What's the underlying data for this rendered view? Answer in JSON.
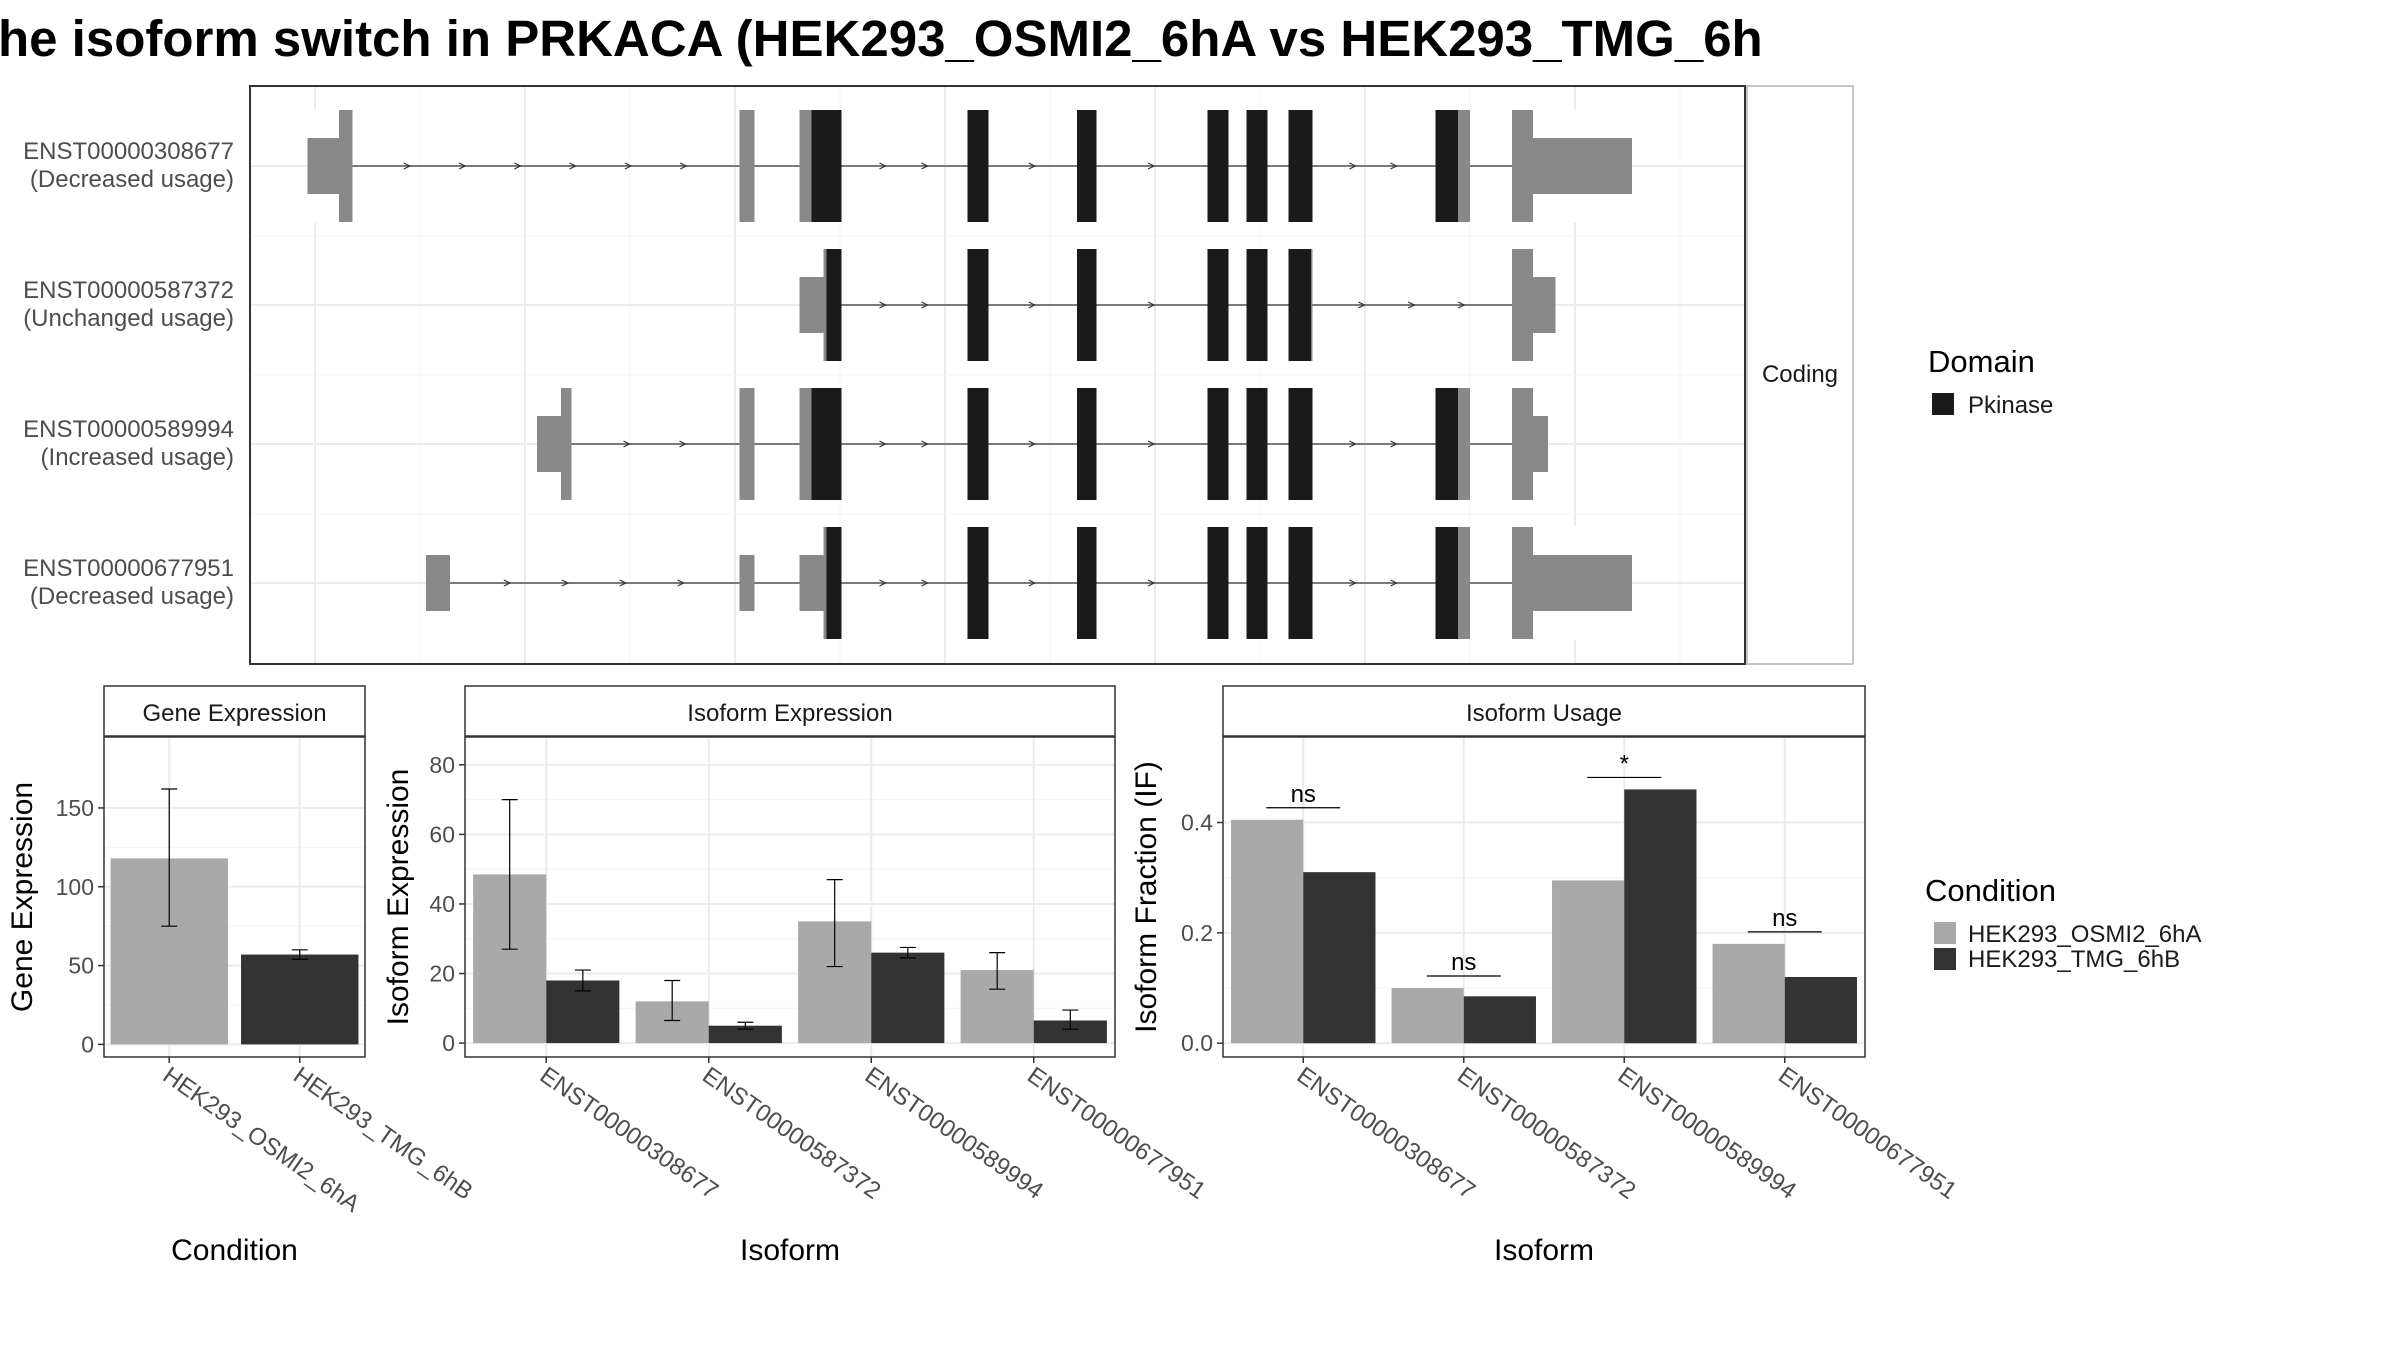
{
  "title": "he isoform switch in PRKACA (HEK293_OSMI2_6hA vs HEK293_TMG_6h",
  "colors": {
    "osmi": "#a9a9a9",
    "tmg": "#333333",
    "exon": "#888888",
    "domain": "#1a1a1a",
    "grid": "#ebebeb",
    "panel_border": "#333333",
    "strip_border": "#b3b3b3"
  },
  "chart_data": [
    {
      "type": "gene-structure",
      "strip_label": "Coding",
      "domain_legend": {
        "title": "Domain",
        "entries": [
          {
            "name": "Pkinase",
            "color": "#1a1a1a"
          }
        ]
      },
      "isoforms": [
        {
          "id": "ENST00000308677",
          "usage": "(Decreased usage)",
          "exons": [
            [
              205,
              235
            ],
            [
              493,
              503
            ],
            [
              533,
              561
            ],
            [
              645,
              659
            ],
            [
              718,
              731
            ],
            [
              805,
              819
            ],
            [
              831,
              845
            ],
            [
              859,
              875
            ],
            [
              957,
              980
            ],
            [
              1008,
              1088
            ]
          ],
          "utr": [
            [
              205,
              226
            ],
            [
              1022,
              1088
            ]
          ],
          "pkinase": [
            [
              541,
              561
            ],
            [
              645,
              659
            ],
            [
              718,
              731
            ],
            [
              805,
              819
            ],
            [
              831,
              845
            ],
            [
              859,
              875
            ],
            [
              957,
              972
            ]
          ]
        },
        {
          "id": "ENST00000587372",
          "usage": "(Unchanged usage)",
          "exons": [
            [
              533,
              561
            ],
            [
              645,
              659
            ],
            [
              718,
              731
            ],
            [
              805,
              819
            ],
            [
              831,
              845
            ],
            [
              859,
              875
            ],
            [
              1008,
              1037
            ]
          ],
          "utr": [
            [
              533,
              549
            ],
            [
              1022,
              1037
            ]
          ],
          "pkinase": [
            [
              551,
              561
            ],
            [
              645,
              659
            ],
            [
              718,
              731
            ],
            [
              805,
              819
            ],
            [
              831,
              845
            ],
            [
              859,
              874
            ]
          ]
        },
        {
          "id": "ENST00000589994",
          "usage": "(Increased usage)",
          "exons": [
            [
              358,
              381
            ],
            [
              493,
              503
            ],
            [
              533,
              561
            ],
            [
              645,
              659
            ],
            [
              718,
              731
            ],
            [
              805,
              819
            ],
            [
              831,
              845
            ],
            [
              859,
              875
            ],
            [
              957,
              980
            ],
            [
              1008,
              1032
            ]
          ],
          "utr": [
            [
              358,
              374
            ],
            [
              1022,
              1032
            ]
          ],
          "pkinase": [
            [
              541,
              561
            ],
            [
              645,
              659
            ],
            [
              718,
              731
            ],
            [
              805,
              819
            ],
            [
              831,
              845
            ],
            [
              859,
              875
            ],
            [
              957,
              972
            ]
          ]
        },
        {
          "id": "ENST00000677951",
          "usage": "(Decreased usage)",
          "exons": [
            [
              284,
              300
            ],
            [
              493,
              503
            ],
            [
              533,
              561
            ],
            [
              645,
              659
            ],
            [
              718,
              731
            ],
            [
              805,
              819
            ],
            [
              831,
              845
            ],
            [
              859,
              875
            ],
            [
              957,
              980
            ],
            [
              1008,
              1088
            ]
          ],
          "utr": [
            [
              284,
              300
            ],
            [
              493,
              503
            ],
            [
              533,
              549
            ],
            [
              1022,
              1088
            ]
          ],
          "pkinase": [
            [
              551,
              561
            ],
            [
              645,
              659
            ],
            [
              718,
              731
            ],
            [
              805,
              819
            ],
            [
              831,
              845
            ],
            [
              859,
              875
            ],
            [
              957,
              972
            ]
          ]
        }
      ]
    },
    {
      "type": "bar",
      "strip_label": "Gene Expression",
      "xlabel": "Condition",
      "ylabel": "Gene Expression",
      "ylim": [
        -8,
        195
      ],
      "yticks": [
        0,
        50,
        100,
        150
      ],
      "categories": [
        "HEK293_OSMI2_6hA",
        "HEK293_TMG_6hB"
      ],
      "series": [
        {
          "values": [
            118,
            57
          ],
          "err_low": [
            75,
            54
          ],
          "err_high": [
            162,
            60
          ]
        }
      ]
    },
    {
      "type": "bar",
      "strip_label": "Isoform Expression",
      "xlabel": "Isoform",
      "ylabel": "Isoform Expression",
      "ylim": [
        -4,
        88
      ],
      "yticks": [
        0,
        20,
        40,
        60,
        80
      ],
      "categories": [
        "ENST00000308677",
        "ENST00000587372",
        "ENST00000589994",
        "ENST00000677951"
      ],
      "series": [
        {
          "name": "HEK293_OSMI2_6hA",
          "values": [
            48.5,
            12,
            35,
            21
          ],
          "err_low": [
            27,
            6.5,
            22,
            15.5
          ],
          "err_high": [
            70,
            18,
            47,
            26
          ]
        },
        {
          "name": "HEK293_TMG_6hB",
          "values": [
            18,
            5,
            26,
            6.5
          ],
          "err_low": [
            15,
            4,
            24.5,
            4
          ],
          "err_high": [
            21,
            6,
            27.5,
            9.5
          ]
        }
      ]
    },
    {
      "type": "bar",
      "strip_label": "Isoform Usage",
      "xlabel": "Isoform",
      "ylabel": "Isoform Fraction (IF)",
      "ylim": [
        -0.025,
        0.555
      ],
      "yticks": [
        0.0,
        0.2,
        0.4
      ],
      "ytick_labels": [
        "0.0",
        "0.2",
        "0.4"
      ],
      "categories": [
        "ENST00000308677",
        "ENST00000587372",
        "ENST00000589994",
        "ENST00000677951"
      ],
      "series": [
        {
          "name": "HEK293_OSMI2_6hA",
          "values": [
            0.405,
            0.1,
            0.295,
            0.18
          ]
        },
        {
          "name": "HEK293_TMG_6hB",
          "values": [
            0.31,
            0.085,
            0.46,
            0.12
          ]
        }
      ],
      "significance": [
        "ns",
        "ns",
        "*",
        "ns"
      ]
    }
  ],
  "condition_legend": {
    "title": "Condition",
    "entries": [
      "HEK293_OSMI2_6hA",
      "HEK293_TMG_6hB"
    ]
  }
}
